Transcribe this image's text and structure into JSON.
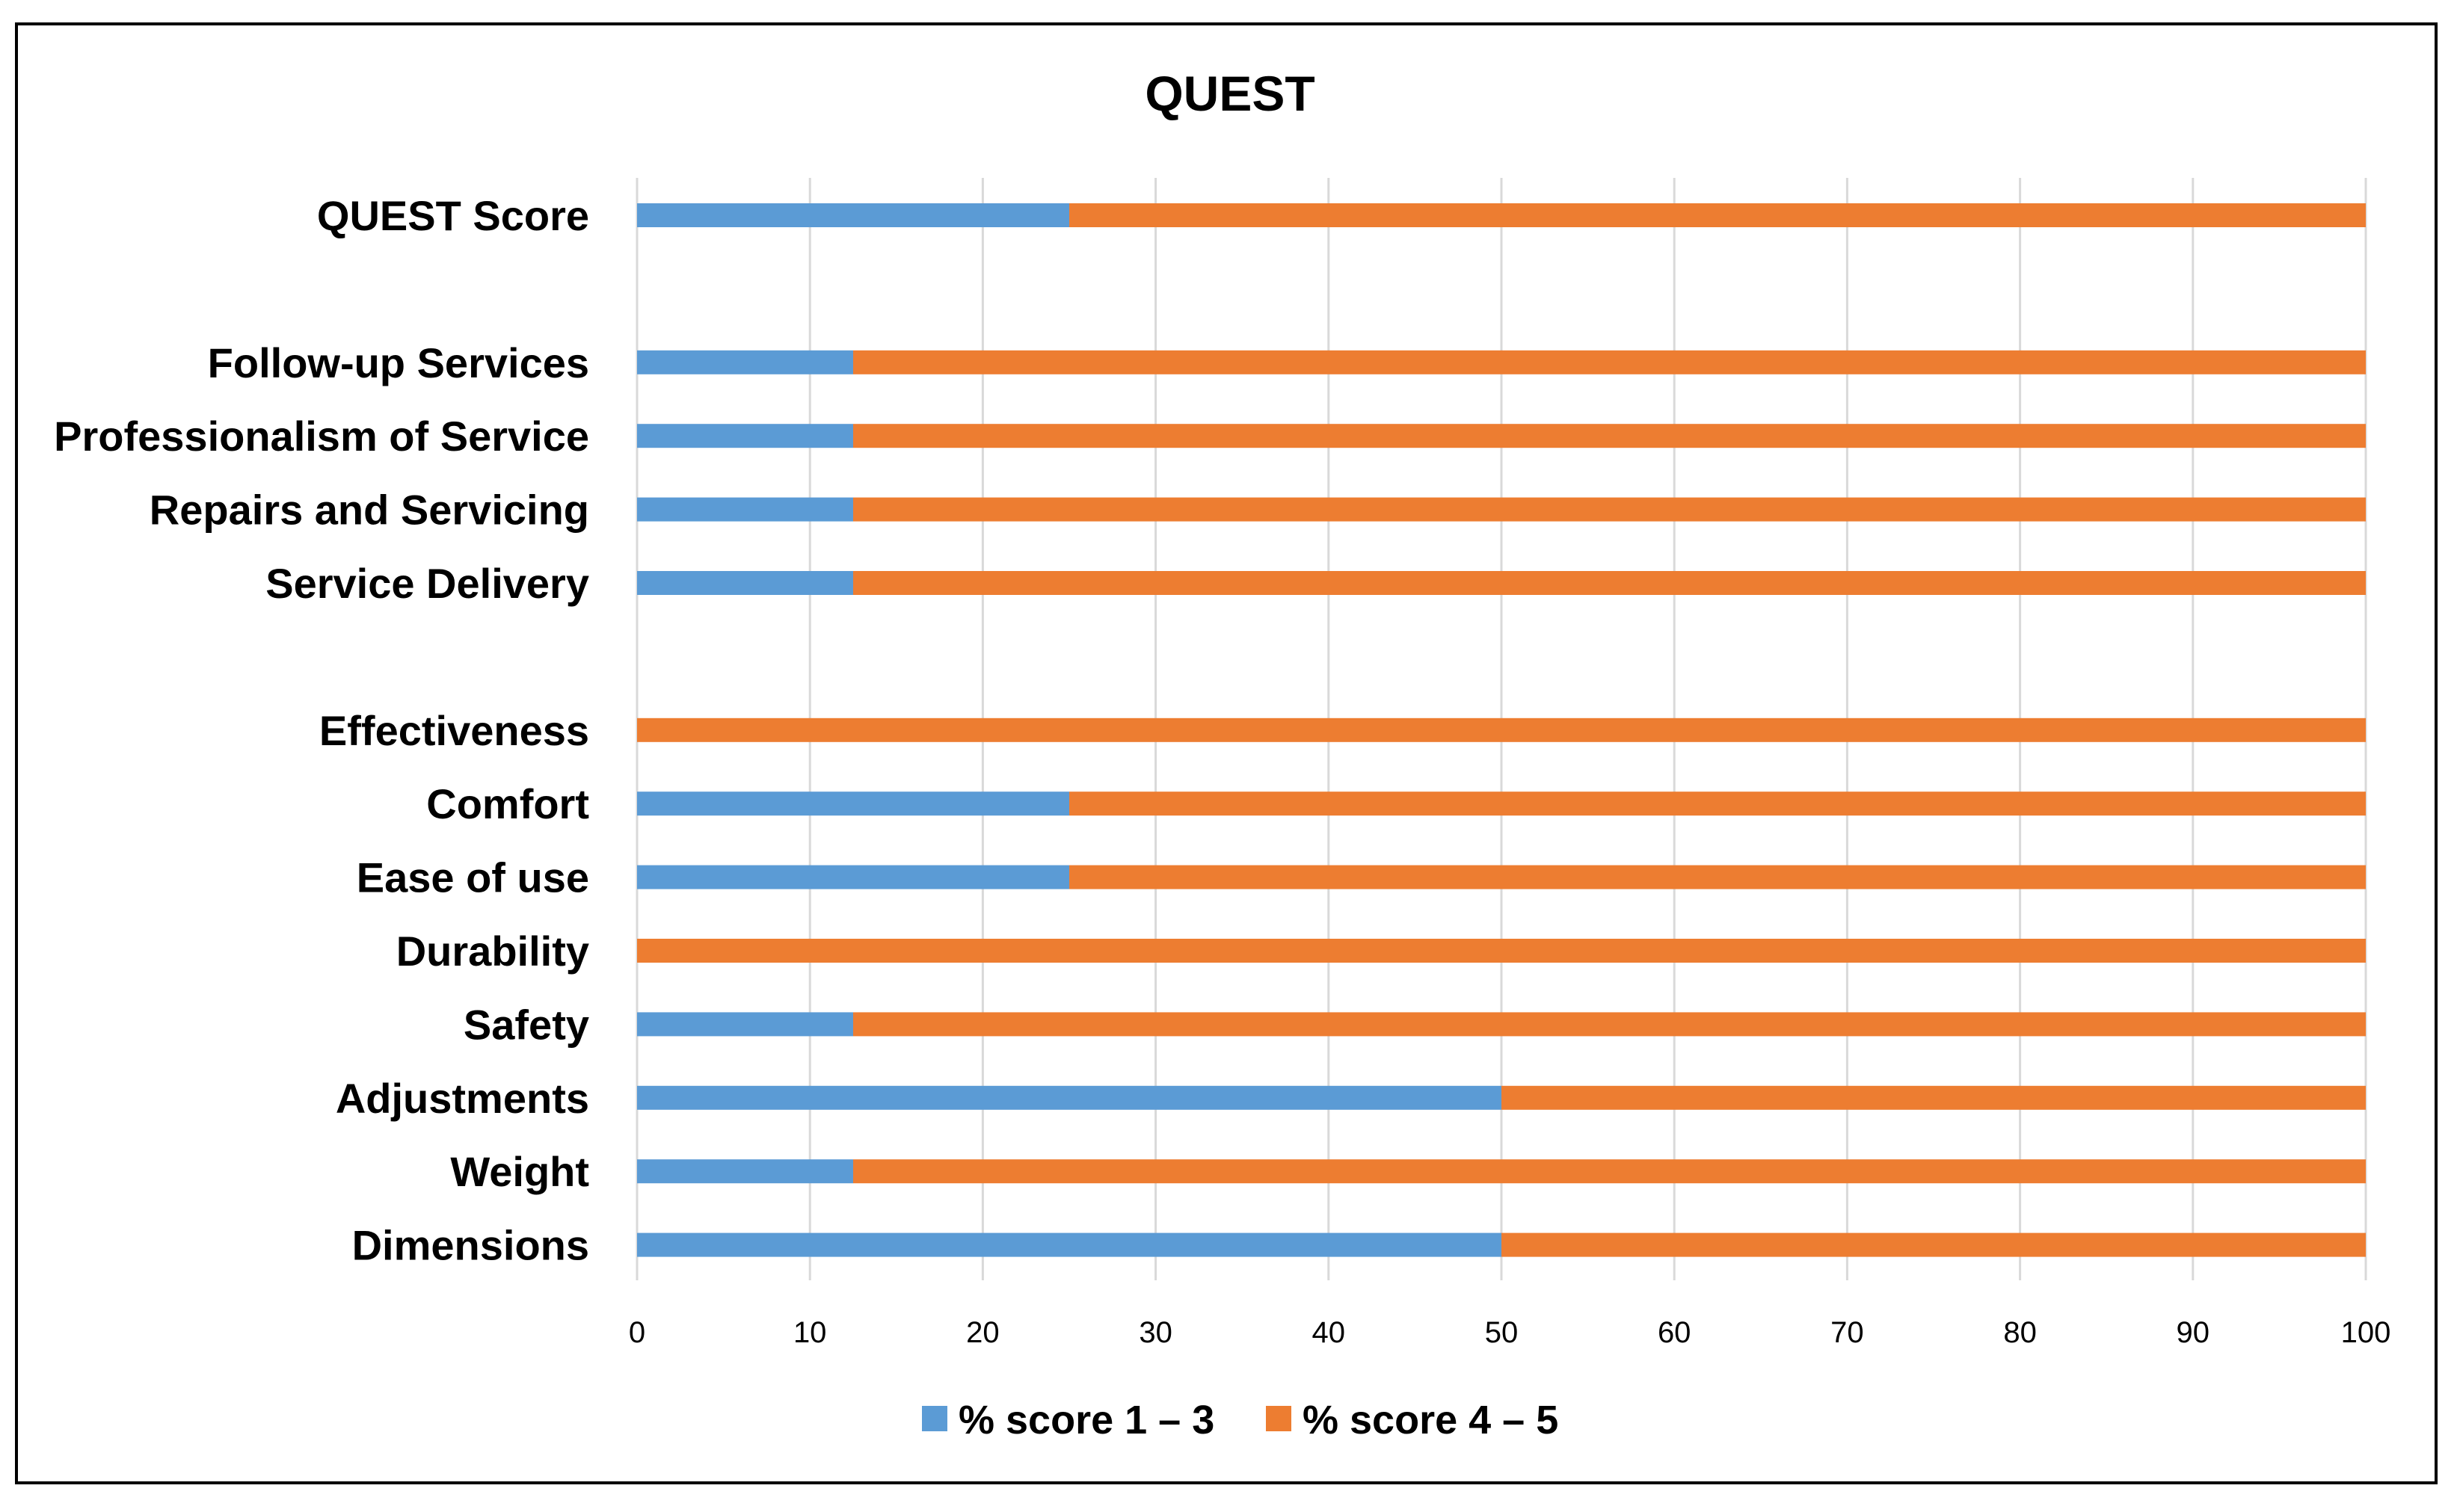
{
  "chart_data": {
    "type": "bar",
    "orientation": "horizontal",
    "stacked": true,
    "title": "QUEST",
    "xlabel": "",
    "ylabel": "",
    "xlim": [
      0,
      100
    ],
    "x_ticks": [
      0,
      10,
      20,
      30,
      40,
      50,
      60,
      70,
      80,
      90,
      100
    ],
    "grid": "vertical",
    "legend_position": "bottom",
    "categories": [
      "QUEST Score",
      "",
      "Follow-up Services",
      "Professionalism of Service",
      "Repairs and Servicing",
      "Service Delivery",
      "",
      "Effectiveness",
      "Comfort",
      "Ease of use",
      "Durability",
      "Safety",
      "Adjustments",
      "Weight",
      "Dimensions"
    ],
    "series": [
      {
        "name": "% score 1 – 3",
        "color": "#5b9bd5",
        "values": [
          25,
          null,
          12.5,
          12.5,
          12.5,
          12.5,
          null,
          0,
          25,
          25,
          0,
          12.5,
          50,
          12.5,
          50
        ]
      },
      {
        "name": "% score 4 – 5",
        "color": "#ed7d31",
        "values": [
          75,
          null,
          87.5,
          87.5,
          87.5,
          87.5,
          null,
          100,
          75,
          75,
          100,
          87.5,
          50,
          87.5,
          50
        ]
      }
    ]
  }
}
